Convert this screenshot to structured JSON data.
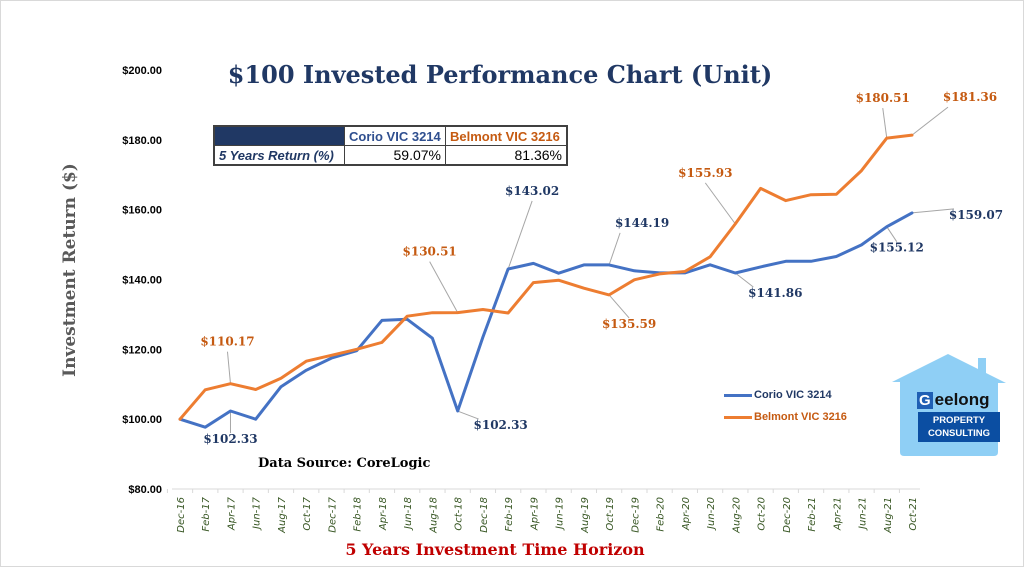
{
  "chart_data": {
    "type": "line",
    "title": "$100 Invested Performance Chart (Unit)",
    "xlabel": "5 Years Investment Time Horizon",
    "ylabel": "Investment Return ($)",
    "ylim": [
      80,
      200
    ],
    "yticks": [
      80,
      100,
      120,
      140,
      160,
      180,
      200
    ],
    "ytick_labels": [
      "$80.00",
      "$100.00",
      "$120.00",
      "$140.00",
      "$160.00",
      "$180.00",
      "$200.00"
    ],
    "grid": false,
    "legend_position": "bottom-right",
    "categories": [
      "Dec-16",
      "Feb-17",
      "Apr-17",
      "Jun-17",
      "Aug-17",
      "Oct-17",
      "Dec-17",
      "Feb-18",
      "Apr-18",
      "Jun-18",
      "Aug-18",
      "Oct-18",
      "Dec-18",
      "Feb-19",
      "Apr-19",
      "Jun-19",
      "Aug-19",
      "Oct-19",
      "Dec-19",
      "Feb-20",
      "Apr-20",
      "Jun-20",
      "Aug-20",
      "Oct-20",
      "Dec-20",
      "Feb-21",
      "Apr-21",
      "Jun-21",
      "Aug-21",
      "Oct-21"
    ],
    "series": [
      {
        "name": "Corio VIC 3214",
        "color": "#4472c4",
        "label_color": "#203864",
        "values": [
          100.0,
          97.7,
          102.33,
          100.0,
          109.3,
          114.0,
          117.5,
          119.6,
          128.3,
          128.6,
          123.2,
          102.33,
          123.5,
          143.02,
          144.6,
          141.8,
          144.19,
          144.19,
          142.5,
          141.9,
          141.9,
          144.2,
          141.86,
          143.6,
          145.2,
          145.2,
          146.6,
          149.9,
          155.12,
          159.07
        ],
        "annotations": [
          {
            "index": 2,
            "text": "$102.33"
          },
          {
            "index": 11,
            "text": "$102.33"
          },
          {
            "index": 13,
            "text": "$143.02"
          },
          {
            "index": 17,
            "text": "$144.19"
          },
          {
            "index": 22,
            "text": "$141.86"
          },
          {
            "index": 28,
            "text": "$155.12"
          },
          {
            "index": 29,
            "text": "$159.07"
          }
        ]
      },
      {
        "name": "Belmont VIC 3216",
        "color": "#ed7d31",
        "label_color": "#c55a11",
        "values": [
          100.0,
          108.4,
          110.17,
          108.5,
          111.7,
          116.6,
          118.3,
          120.0,
          122.0,
          129.5,
          130.5,
          130.51,
          131.4,
          130.4,
          139.1,
          139.8,
          137.5,
          135.59,
          139.9,
          141.6,
          142.3,
          146.5,
          155.93,
          166.1,
          162.6,
          164.3,
          164.4,
          171.2,
          180.51,
          181.36
        ],
        "annotations": [
          {
            "index": 2,
            "text": "$110.17"
          },
          {
            "index": 11,
            "text": "$130.51"
          },
          {
            "index": 17,
            "text": "$135.59"
          },
          {
            "index": 22,
            "text": "$155.93"
          },
          {
            "index": 28,
            "text": "$180.51"
          },
          {
            "index": 29,
            "text": "$181.36"
          }
        ]
      }
    ]
  },
  "returns_table": {
    "headers": [
      "",
      "Corio VIC 3214",
      "Belmont VIC 3216"
    ],
    "row_label": "5 Years Return (%)",
    "values": [
      "59.07%",
      "81.36%"
    ]
  },
  "legend": [
    {
      "label": "Corio VIC 3214",
      "color": "#4472c4",
      "text_color": "#203864"
    },
    {
      "label": "Belmont VIC 3216",
      "color": "#ed7d31",
      "text_color": "#c55a11"
    }
  ],
  "source_note": "Data Source: CoreLogic",
  "logo": {
    "initial": "G",
    "word": "eelong",
    "line1": "PROPERTY",
    "line2": "CONSULTING",
    "house_color": "#8fcff5",
    "box_color": "#0b4ea2"
  }
}
